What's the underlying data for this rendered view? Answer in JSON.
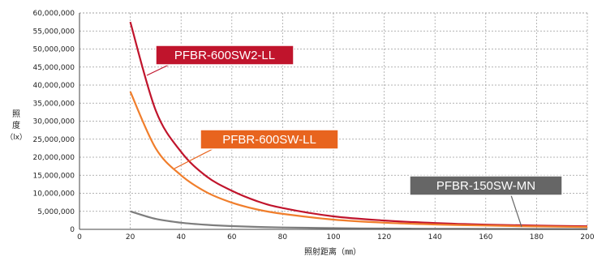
{
  "chart_data": {
    "type": "line",
    "title": "",
    "xlabel": "照射距离（㎜）",
    "ylabel_chars": [
      "照",
      "度",
      "（lx）"
    ],
    "xlim": [
      0,
      200
    ],
    "ylim": [
      0,
      60000000
    ],
    "x_ticks": [
      0,
      20,
      40,
      60,
      80,
      100,
      120,
      140,
      160,
      180,
      200
    ],
    "x_tick_labels": [
      "0",
      "20",
      "40",
      "60",
      "80",
      "100",
      "120",
      "140",
      "160",
      "180",
      "200"
    ],
    "y_ticks": [
      0,
      5000000,
      10000000,
      15000000,
      20000000,
      25000000,
      30000000,
      35000000,
      40000000,
      45000000,
      50000000,
      55000000,
      60000000
    ],
    "y_tick_labels": [
      "0",
      "5,000,000",
      "10,000,000",
      "15,000,000",
      "20,000,000",
      "25,000,000",
      "30,000,000",
      "35,000,000",
      "40,000,000",
      "45,000,000",
      "50,000,000",
      "55,000,000",
      "60,000,000"
    ],
    "grid": true,
    "series": [
      {
        "name": "PFBR-600SW2-LL",
        "color": "#c0142c",
        "label_bg": "#c0142c",
        "x": [
          20,
          30,
          40,
          50,
          60,
          70,
          80,
          100,
          120,
          140,
          160,
          180,
          200
        ],
        "values": [
          57500000,
          33000000,
          21500000,
          14700000,
          10700000,
          7800000,
          5900000,
          3600000,
          2450000,
          1750000,
          1300000,
          1050000,
          850000
        ]
      },
      {
        "name": "PFBR-600SW-LL",
        "color": "#f07e2c",
        "label_bg": "#e8641e",
        "x": [
          20,
          30,
          40,
          50,
          60,
          70,
          80,
          100,
          120,
          140,
          160,
          180,
          200
        ],
        "values": [
          38200000,
          22500000,
          15000000,
          10300000,
          7400000,
          5500000,
          4300000,
          2700000,
          1850000,
          1350000,
          1050000,
          800000,
          650000
        ]
      },
      {
        "name": "PFBR-150SW-MN",
        "color": "#7d7d7d",
        "label_bg": "#666666",
        "x": [
          20,
          30,
          40,
          50,
          60,
          70,
          80,
          100,
          120,
          140,
          160,
          180,
          200
        ],
        "values": [
          5000000,
          2900000,
          1850000,
          1250000,
          900000,
          680000,
          520000,
          330000,
          220000,
          160000,
          120000,
          95000,
          75000
        ]
      }
    ]
  }
}
